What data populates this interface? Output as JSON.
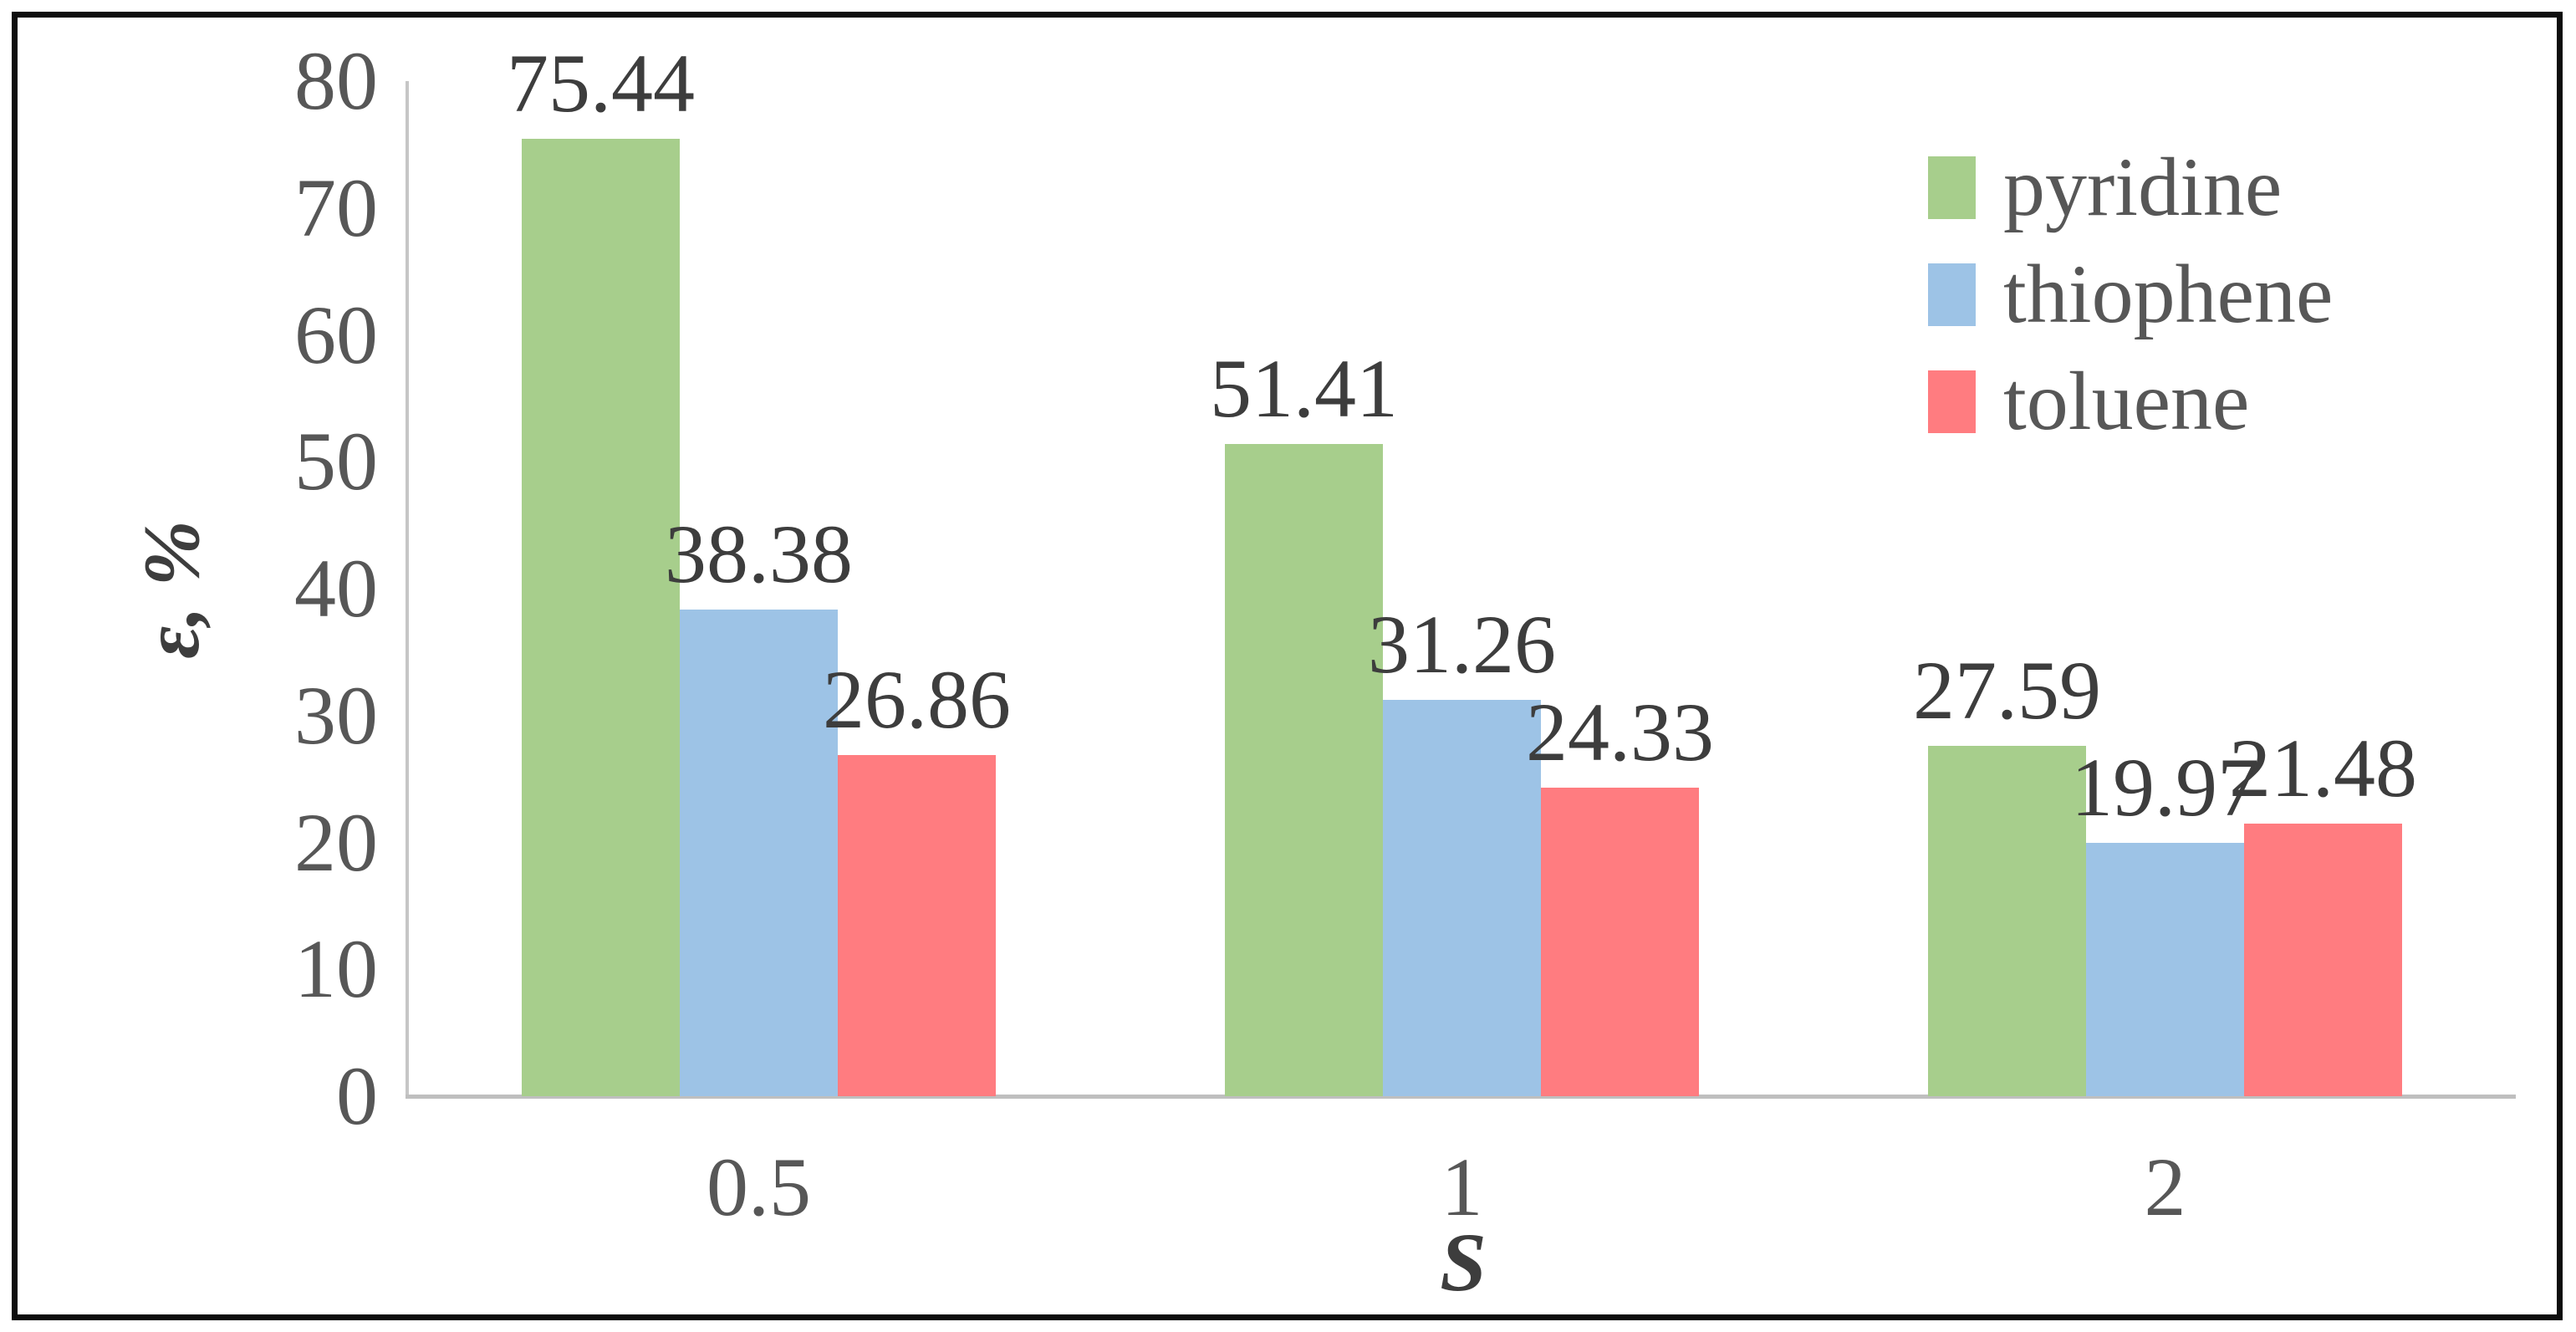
{
  "figure": {
    "background": "#ffffff",
    "border_color": "#0d0d0d",
    "axis_line_color": "#c6c6c6",
    "tick_text_color": "#575757",
    "data_label_color": "#3d3d3d"
  },
  "chart_data": {
    "type": "bar",
    "title": "",
    "categories": [
      "0.5",
      "1",
      "2"
    ],
    "series": [
      {
        "name": "pyridine",
        "color": "#a7ce8c",
        "values": [
          75.44,
          51.41,
          27.59
        ]
      },
      {
        "name": "thiophene",
        "color": "#9dc3e6",
        "values": [
          38.38,
          31.26,
          19.97
        ]
      },
      {
        "name": "toluene",
        "color": "#ff7c80",
        "values": [
          26.86,
          24.33,
          21.48
        ]
      }
    ],
    "data_labels": [
      [
        "75.44",
        "51.41",
        "27.59"
      ],
      [
        "38.38",
        "31.26",
        "19.97"
      ],
      [
        "26.86",
        "24.33",
        "21.48"
      ]
    ],
    "xlabel": "S",
    "ylabel": "ε, %",
    "ylim": [
      0,
      80
    ],
    "yticks": [
      "0",
      "10",
      "20",
      "30",
      "40",
      "50",
      "60",
      "70",
      "80"
    ],
    "grid": false,
    "legend_position": "top-right",
    "legend_entries": [
      "pyridine",
      "thiophene",
      "toluene"
    ]
  }
}
